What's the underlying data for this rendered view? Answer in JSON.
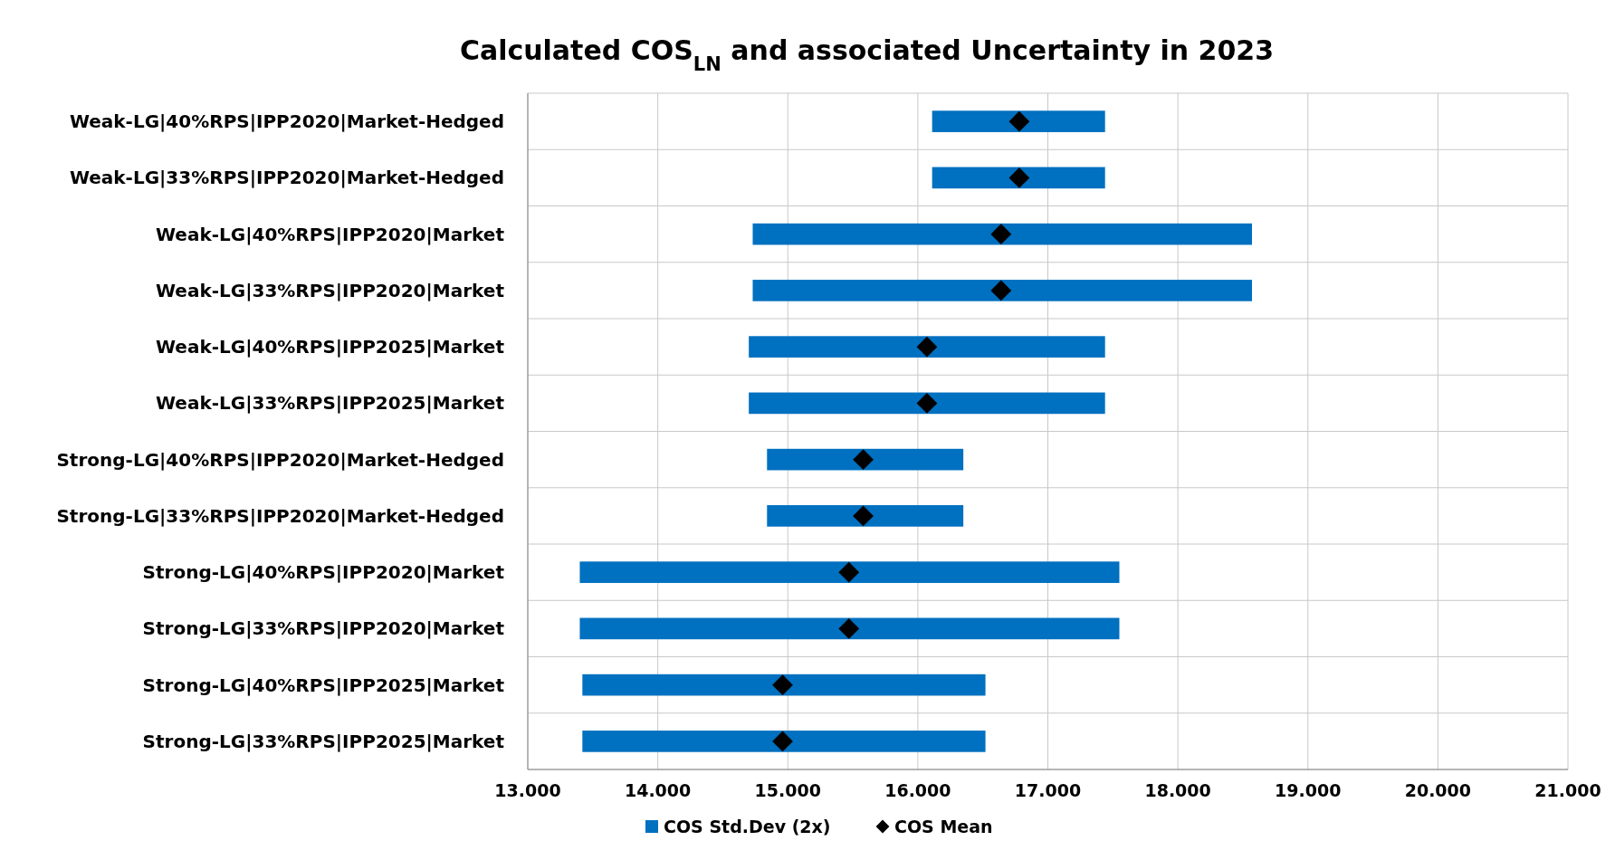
{
  "chart_data": {
    "type": "bar",
    "orientation": "horizontal",
    "title": "Calculated COS$_{LN}$ and associated Uncertainty in 2023",
    "categories": [
      "Weak-LG|40%RPS|IPP2020|Market-Hedged",
      "Weak-LG|33%RPS|IPP2020|Market-Hedged",
      "Weak-LG|40%RPS|IPP2020|Market",
      "Weak-LG|33%RPS|IPP2020|Market",
      "Weak-LG|40%RPS|IPP2025|Market",
      "Weak-LG|33%RPS|IPP2025|Market",
      "Strong-LG|40%RPS|IPP2020|Market-Hedged",
      "Strong-LG|33%RPS|IPP2020|Market-Hedged",
      "Strong-LG|40%RPS|IPP2020|Market",
      "Strong-LG|33%RPS|IPP2020|Market",
      "Strong-LG|40%RPS|IPP2025|Market",
      "Strong-LG|33%RPS|IPP2025|Market"
    ],
    "series": [
      {
        "name": "COS Std.Dev (2x)",
        "type": "bar",
        "color": "#0070c0",
        "base": [
          16.11,
          16.11,
          14.73,
          14.73,
          14.7,
          14.7,
          14.84,
          14.84,
          13.4,
          13.4,
          13.42,
          13.42
        ],
        "values": [
          1.33,
          1.33,
          3.84,
          3.84,
          2.74,
          2.74,
          1.51,
          1.51,
          4.15,
          4.15,
          3.1,
          3.1
        ]
      },
      {
        "name": "COS Mean",
        "type": "scatter",
        "marker": "diamond",
        "color": "#000000",
        "values": [
          16.78,
          16.78,
          16.64,
          16.64,
          16.07,
          16.07,
          15.58,
          15.58,
          15.47,
          15.47,
          14.96,
          14.96
        ]
      }
    ],
    "xlim": [
      13,
      21
    ],
    "xticks": [
      {
        "value": 13,
        "label": "13.000"
      },
      {
        "value": 14,
        "label": "14.000"
      },
      {
        "value": 15,
        "label": "15.000"
      },
      {
        "value": 16,
        "label": "16.000"
      },
      {
        "value": 17,
        "label": "17.000"
      },
      {
        "value": 18,
        "label": "18.000"
      },
      {
        "value": 19,
        "label": "19.000"
      },
      {
        "value": 20,
        "label": "20.000"
      },
      {
        "value": 21,
        "label": "21.000"
      }
    ],
    "grid": true,
    "legend": "bottom"
  }
}
